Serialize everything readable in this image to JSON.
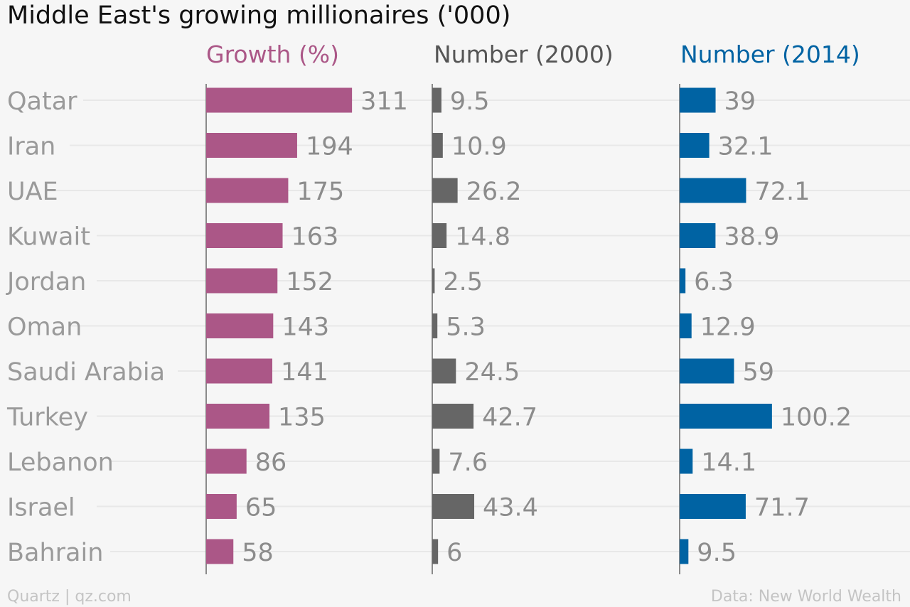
{
  "chart_data": {
    "type": "bar",
    "title": "Middle East's growing millionaires ('000)",
    "categories": [
      "Qatar",
      "Iran",
      "UAE",
      "Kuwait",
      "Jordan",
      "Oman",
      "Saudi Arabia",
      "Turkey",
      "Lebanon",
      "Israel",
      "Bahrain"
    ],
    "series": [
      {
        "name": "Growth (%)",
        "color": "#ab5787",
        "values": [
          311,
          194,
          175,
          163,
          152,
          143,
          141,
          135,
          86,
          65,
          58
        ],
        "labels": [
          "311",
          "194",
          "175",
          "163",
          "152",
          "143",
          "141",
          "135",
          "86",
          "65",
          "58"
        ],
        "xlim": [
          0,
          470
        ]
      },
      {
        "name": "Number (2000)",
        "color": "#666666",
        "values": [
          9.5,
          10.9,
          26.2,
          14.8,
          2.5,
          5.3,
          24.5,
          42.7,
          7.6,
          43.4,
          6
        ],
        "labels": [
          "9.5",
          "10.9",
          "26.2",
          "14.8",
          "2.5",
          "5.3",
          "24.5",
          "42.7",
          "7.6",
          "43.4",
          "6"
        ],
        "xlim": [
          0,
          250
        ]
      },
      {
        "name": "Number (2014)",
        "color": "#0063a3",
        "values": [
          39,
          32.1,
          72.1,
          38.9,
          6.3,
          12.9,
          59,
          100.2,
          14.1,
          71.7,
          9.5
        ],
        "labels": [
          "39",
          "32.1",
          "72.1",
          "38.9",
          "6.3",
          "12.9",
          "59",
          "100.2",
          "14.1",
          "71.7",
          "9.5"
        ],
        "xlim": [
          0,
          250
        ]
      }
    ],
    "orientation": "horizontal",
    "grid": true
  },
  "footer": {
    "source_left": "Quartz | qz.com",
    "source_right": "Data: New World Wealth"
  },
  "colors": {
    "label": "#9a9a9a",
    "value": "#8c8c8c",
    "title": "#111111",
    "grid": "#e8e8e8",
    "axis": "#8a8a8a",
    "background": "#f6f6f6"
  }
}
